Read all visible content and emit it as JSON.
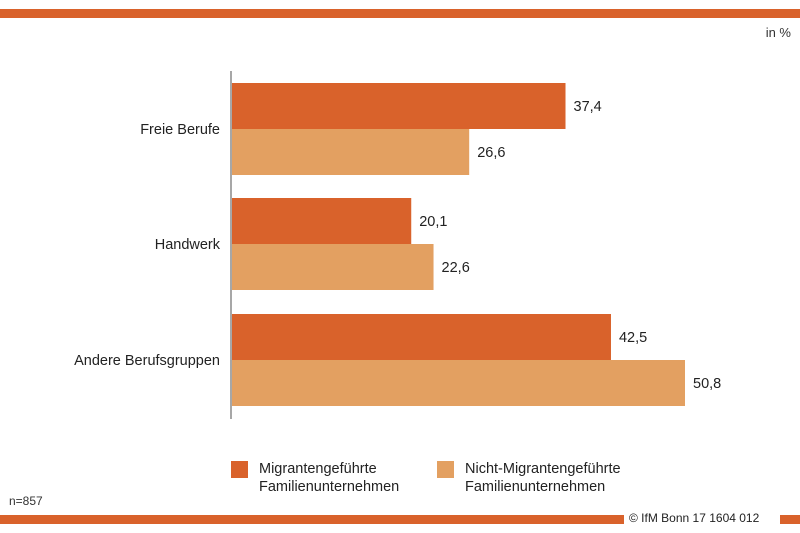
{
  "colors": {
    "accent": "#d9622b",
    "series_primary": "#d9622b",
    "series_secondary": "#e3a061",
    "axis": "#8a8a8a"
  },
  "header": {
    "unit_label": "in %"
  },
  "footer": {
    "sample_size": "n=857",
    "copyright": "© IfM Bonn 17 1604 012"
  },
  "legend": {
    "items": [
      {
        "label": "Migrantengeführte Familienunternehmen",
        "color": "#d9622b"
      },
      {
        "label": "Nicht-Migrantengeführte Familienunternehmen",
        "color": "#e3a061"
      }
    ]
  },
  "chart_data": {
    "type": "bar",
    "orientation": "horizontal",
    "categories": [
      "Freie Berufe",
      "Handwerk",
      "Andere Berufsgruppen"
    ],
    "series": [
      {
        "name": "Migrantengeführte Familienunternehmen",
        "values": [
          37.4,
          20.1,
          42.5
        ],
        "labels": [
          "37,4",
          "20,1",
          "42,5"
        ]
      },
      {
        "name": "Nicht-Migrantengeführte Familienunternehmen",
        "values": [
          26.6,
          22.6,
          50.8
        ],
        "labels": [
          "26,6",
          "22,6",
          "50,8"
        ]
      }
    ],
    "unit": "in %",
    "xlim": [
      0,
      50.8
    ],
    "grid": false,
    "legend_position": "bottom"
  }
}
